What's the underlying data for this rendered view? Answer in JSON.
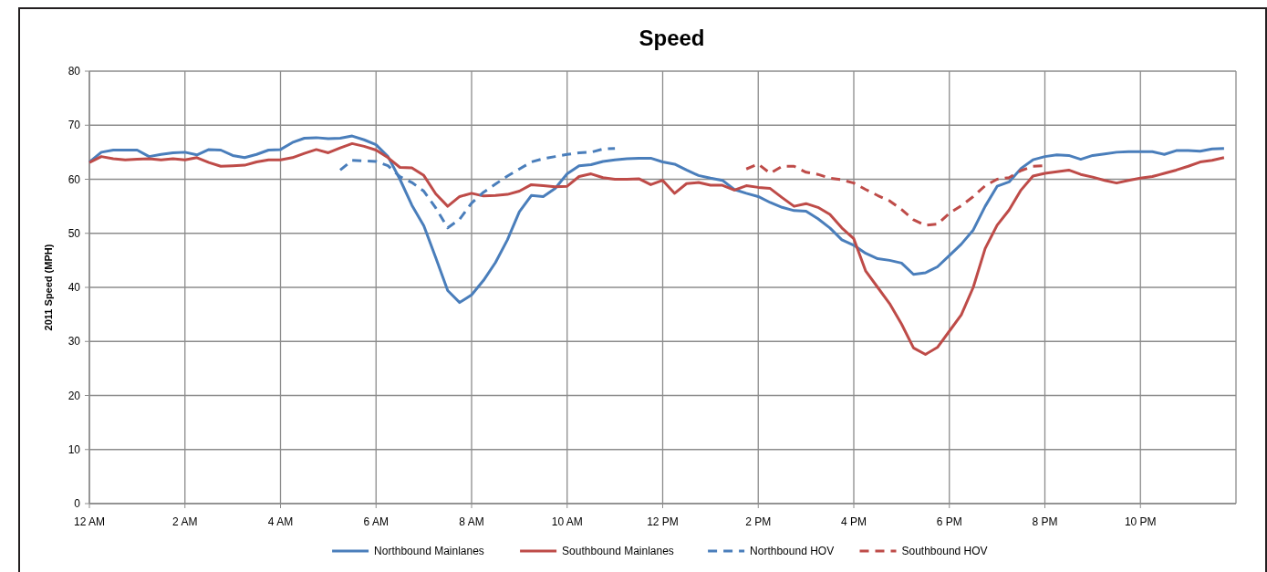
{
  "chart_data": {
    "type": "line",
    "title": "Speed",
    "ylabel": "2011  Speed (MPH)",
    "xlim": [
      "2011-01-01T00:00",
      "2011-01-02T00:00"
    ],
    "ylim": [
      0,
      80
    ],
    "xticks": [
      {
        "value": "2011-01-01T00:00",
        "label": "12 AM"
      },
      {
        "value": "2011-01-01T02:00",
        "label": "2 AM"
      },
      {
        "value": "2011-01-01T04:00",
        "label": "4 AM"
      },
      {
        "value": "2011-01-01T06:00",
        "label": "6 AM"
      },
      {
        "value": "2011-01-01T08:00",
        "label": "8 AM"
      },
      {
        "value": "2011-01-01T10:00",
        "label": "10 AM"
      },
      {
        "value": "2011-01-01T12:00",
        "label": "12 PM"
      },
      {
        "value": "2011-01-01T14:00",
        "label": "2 PM"
      },
      {
        "value": "2011-01-01T16:00",
        "label": "4 PM"
      },
      {
        "value": "2011-01-01T18:00",
        "label": "6 PM"
      },
      {
        "value": "2011-01-01T20:00",
        "label": "8 PM"
      },
      {
        "value": "2011-01-01T22:00",
        "label": "10 PM"
      }
    ],
    "yticks": [
      0,
      10,
      20,
      30,
      40,
      50,
      60,
      70,
      80
    ],
    "grid": true,
    "legend": "bottom",
    "x": [
      "2011-01-01T00:00",
      "2011-01-01T00:15",
      "2011-01-01T00:30",
      "2011-01-01T00:45",
      "2011-01-01T01:00",
      "2011-01-01T01:15",
      "2011-01-01T01:30",
      "2011-01-01T01:45",
      "2011-01-01T02:00",
      "2011-01-01T02:15",
      "2011-01-01T02:30",
      "2011-01-01T02:45",
      "2011-01-01T03:00",
      "2011-01-01T03:15",
      "2011-01-01T03:30",
      "2011-01-01T03:45",
      "2011-01-01T04:00",
      "2011-01-01T04:15",
      "2011-01-01T04:30",
      "2011-01-01T04:45",
      "2011-01-01T05:00",
      "2011-01-01T05:15",
      "2011-01-01T05:30",
      "2011-01-01T05:45",
      "2011-01-01T06:00",
      "2011-01-01T06:15",
      "2011-01-01T06:30",
      "2011-01-01T06:45",
      "2011-01-01T07:00",
      "2011-01-01T07:15",
      "2011-01-01T07:30",
      "2011-01-01T07:45",
      "2011-01-01T08:00",
      "2011-01-01T08:15",
      "2011-01-01T08:30",
      "2011-01-01T08:45",
      "2011-01-01T09:00",
      "2011-01-01T09:15",
      "2011-01-01T09:30",
      "2011-01-01T09:45",
      "2011-01-01T10:00",
      "2011-01-01T10:15",
      "2011-01-01T10:30",
      "2011-01-01T10:45",
      "2011-01-01T11:00",
      "2011-01-01T11:15",
      "2011-01-01T11:30",
      "2011-01-01T11:45",
      "2011-01-01T12:00",
      "2011-01-01T12:15",
      "2011-01-01T12:30",
      "2011-01-01T12:45",
      "2011-01-01T13:00",
      "2011-01-01T13:15",
      "2011-01-01T13:30",
      "2011-01-01T13:45",
      "2011-01-01T14:00",
      "2011-01-01T14:15",
      "2011-01-01T14:30",
      "2011-01-01T14:45",
      "2011-01-01T15:00",
      "2011-01-01T15:15",
      "2011-01-01T15:30",
      "2011-01-01T15:45",
      "2011-01-01T16:00",
      "2011-01-01T16:15",
      "2011-01-01T16:30",
      "2011-01-01T16:45",
      "2011-01-01T17:00",
      "2011-01-01T17:15",
      "2011-01-01T17:30",
      "2011-01-01T17:45",
      "2011-01-01T18:00",
      "2011-01-01T18:15",
      "2011-01-01T18:30",
      "2011-01-01T18:45",
      "2011-01-01T19:00",
      "2011-01-01T19:15",
      "2011-01-01T19:30",
      "2011-01-01T19:45",
      "2011-01-01T20:00",
      "2011-01-01T20:15",
      "2011-01-01T20:30",
      "2011-01-01T20:45",
      "2011-01-01T21:00",
      "2011-01-01T21:15",
      "2011-01-01T21:30",
      "2011-01-01T21:45",
      "2011-01-01T22:00",
      "2011-01-01T22:15",
      "2011-01-01T22:30",
      "2011-01-01T22:45",
      "2011-01-01T23:00",
      "2011-01-01T23:15",
      "2011-01-01T23:30",
      "2011-01-01T23:45"
    ],
    "series": [
      {
        "name": "Northbound Mainlanes",
        "color": "#4a7ebb",
        "line_style": "solid",
        "values": [
          63.2,
          65,
          65.4,
          65.4,
          65.4,
          64.2,
          64.6,
          64.9,
          65,
          64.5,
          65.5,
          65.4,
          64.4,
          64,
          64.6,
          65.4,
          65.5,
          66.8,
          67.6,
          67.7,
          67.5,
          67.6,
          68,
          67.3,
          66.4,
          64.2,
          60,
          55.2,
          51.4,
          45.5,
          39.4,
          37.2,
          38.6,
          41.3,
          44.6,
          48.8,
          54,
          57,
          56.8,
          58.3,
          61,
          62.5,
          62.7,
          63.3,
          63.6,
          63.8,
          63.9,
          63.9,
          63.2,
          62.8,
          61.7,
          60.7,
          60.2,
          59.8,
          58.1,
          57.4,
          56.8,
          55.7,
          54.8,
          54.2,
          54.1,
          52.7,
          51,
          48.8,
          47.8,
          46.3,
          45.3,
          45,
          44.5,
          42.4,
          42.7,
          43.8,
          45.9,
          48,
          50.6,
          55,
          58.7,
          59.5,
          62,
          63.6,
          64.2,
          64.5,
          64.4,
          63.7,
          64.4,
          64.7,
          65,
          65.1,
          65.1,
          65.1,
          64.6,
          65.3,
          65.3,
          65.2,
          65.6,
          65.7
        ]
      },
      {
        "name": "Southbound Mainlanes",
        "color": "#be4b48",
        "line_style": "solid",
        "values": [
          63.1,
          64.2,
          63.8,
          63.6,
          63.7,
          63.8,
          63.6,
          63.8,
          63.6,
          64,
          63.1,
          62.4,
          62.5,
          62.6,
          63.2,
          63.6,
          63.6,
          64,
          64.8,
          65.5,
          64.9,
          65.8,
          66.6,
          66.1,
          65.4,
          64,
          62.2,
          62.1,
          60.7,
          57.3,
          55,
          56.8,
          57.4,
          56.9,
          57,
          57.2,
          57.8,
          59,
          58.8,
          58.6,
          58.7,
          60.5,
          61,
          60.3,
          60,
          60,
          60.1,
          59,
          59.8,
          57.4,
          59.2,
          59.4,
          58.9,
          58.9,
          58,
          58.8,
          58.5,
          58.3,
          56.6,
          55,
          55.5,
          54.8,
          53.5,
          51,
          49,
          43,
          40,
          37,
          33.2,
          28.8,
          27.6,
          28.9,
          31.9,
          34.9,
          40,
          47.2,
          51.5,
          54.3,
          58,
          60.6,
          61.1,
          61.4,
          61.7,
          60.9,
          60.4,
          59.8,
          59.3,
          59.8,
          60.2,
          60.5,
          61.1,
          61.7,
          62.4,
          63.2,
          63.5,
          64
        ]
      },
      {
        "name": "Northbound HOV",
        "color": "#4a7ebb",
        "line_style": "dashed",
        "x": [
          "2011-01-01T05:15",
          "2011-01-01T05:30",
          "2011-01-01T05:45",
          "2011-01-01T06:00",
          "2011-01-01T06:15",
          "2011-01-01T06:30",
          "2011-01-01T06:45",
          "2011-01-01T07:00",
          "2011-01-01T07:15",
          "2011-01-01T07:30",
          "2011-01-01T07:45",
          "2011-01-01T08:00",
          "2011-01-01T08:15",
          "2011-01-01T08:30",
          "2011-01-01T08:45",
          "2011-01-01T09:00",
          "2011-01-01T09:15",
          "2011-01-01T09:30",
          "2011-01-01T09:45",
          "2011-01-01T10:00",
          "2011-01-01T10:15",
          "2011-01-01T10:30",
          "2011-01-01T10:45",
          "2011-01-01T11:00"
        ],
        "values": [
          61.7,
          63.5,
          63.4,
          63.3,
          62.5,
          60.5,
          59.4,
          57.8,
          54.7,
          51,
          52.6,
          55.6,
          57.6,
          59.1,
          60.6,
          61.9,
          63.2,
          63.8,
          64.2,
          64.6,
          64.9,
          65,
          65.6,
          65.7
        ]
      },
      {
        "name": "Southbound HOV",
        "color": "#be4b48",
        "line_style": "dashed",
        "x": [
          "2011-01-01T13:45",
          "2011-01-01T14:00",
          "2011-01-01T14:15",
          "2011-01-01T14:30",
          "2011-01-01T14:45",
          "2011-01-01T15:00",
          "2011-01-01T15:15",
          "2011-01-01T15:30",
          "2011-01-01T15:45",
          "2011-01-01T16:00",
          "2011-01-01T16:15",
          "2011-01-01T16:30",
          "2011-01-01T16:45",
          "2011-01-01T17:00",
          "2011-01-01T17:15",
          "2011-01-01T17:30",
          "2011-01-01T17:45",
          "2011-01-01T18:00",
          "2011-01-01T18:15",
          "2011-01-01T18:30",
          "2011-01-01T18:45",
          "2011-01-01T19:00",
          "2011-01-01T19:15",
          "2011-01-01T19:30",
          "2011-01-01T19:45",
          "2011-01-01T20:00"
        ],
        "values": [
          61.9,
          62.8,
          61.1,
          62.4,
          62.4,
          61.3,
          60.9,
          60.2,
          59.9,
          59.3,
          58.1,
          57,
          56,
          54.4,
          52.5,
          51.5,
          51.7,
          53.7,
          55.1,
          56.8,
          58.8,
          60,
          60.3,
          61.6,
          62.4,
          62.5
        ]
      }
    ]
  }
}
